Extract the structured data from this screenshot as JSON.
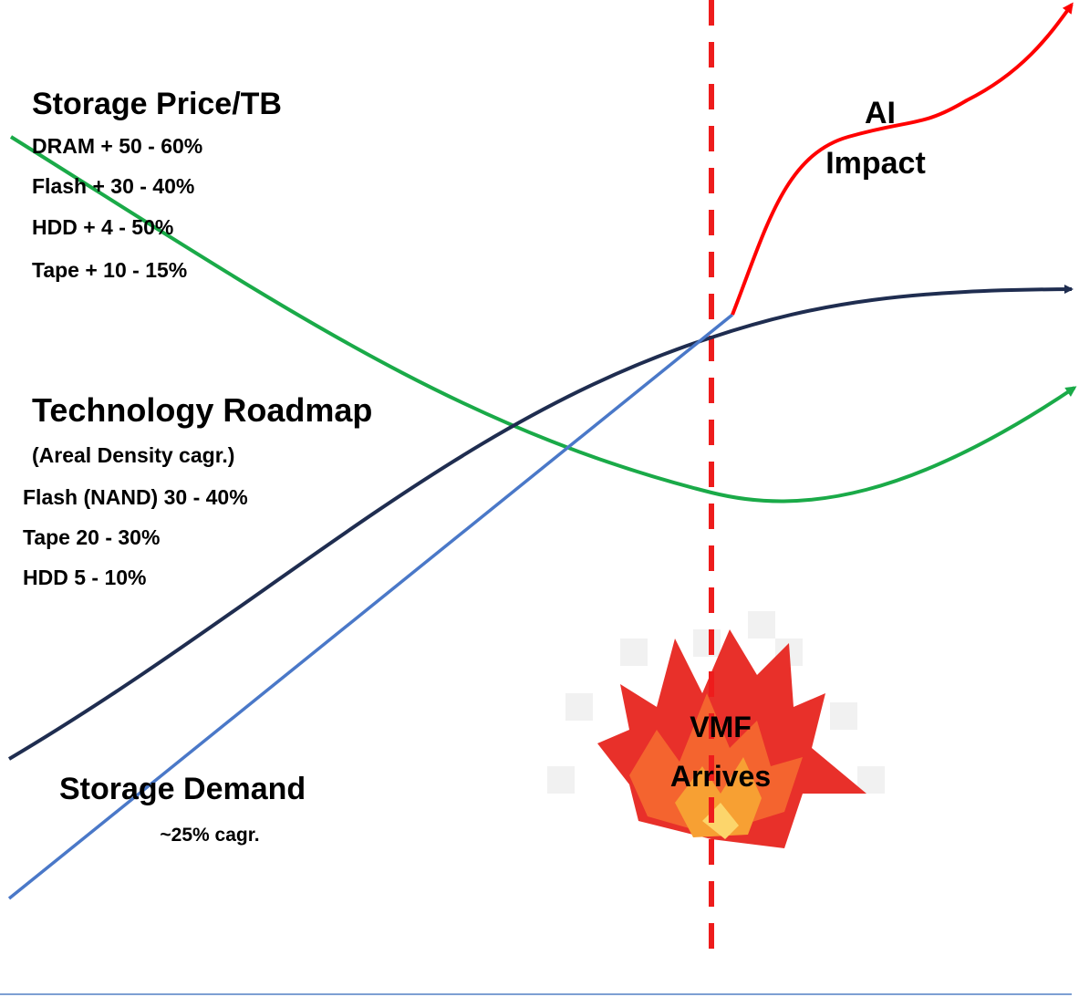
{
  "price": {
    "title": "Storage Price/TB",
    "items": [
      "DRAM + 50 - 60%",
      "Flash + 30 - 40%",
      "HDD + 4 - 50%",
      "Tape + 10 - 15%"
    ]
  },
  "roadmap": {
    "title": "Technology Roadmap",
    "subtitle": "(Areal Density cagr.)",
    "items": [
      "Flash (NAND) 30 - 40%",
      "Tape 20 - 30%",
      "HDD 5 - 10%"
    ]
  },
  "demand": {
    "title": "Storage Demand",
    "subtitle": "~25% cagr."
  },
  "ai_impact": {
    "lines": [
      "AI",
      "Impact"
    ]
  },
  "vmf": {
    "lines": [
      "VMF",
      "Arrives"
    ]
  }
}
